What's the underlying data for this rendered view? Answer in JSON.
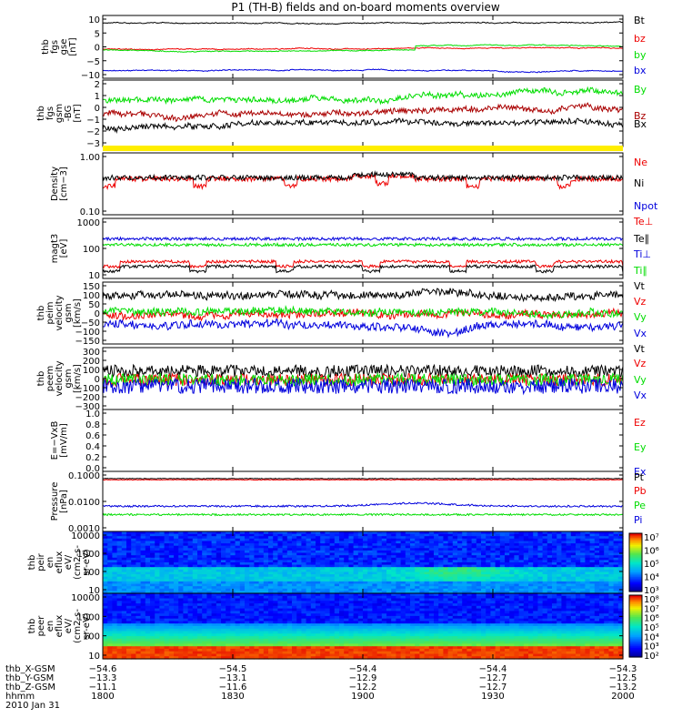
{
  "title": "P1 (TH-B) fields and on-board moments overview",
  "colors": {
    "black": "#000000",
    "red": "#ee0000",
    "green": "#00dd00",
    "blue": "#0000dd",
    "yellow": "#ffee00",
    "darkred": "#aa0000"
  },
  "chart_data": [
    {
      "type": "line",
      "ylabel": [
        "thb",
        "fgs",
        "gse",
        "[nT]"
      ],
      "yticks": [
        "10",
        "5",
        "0",
        "−5",
        "−10"
      ],
      "ylim": [
        -11,
        11
      ],
      "series": [
        {
          "name": "Bt",
          "color": "#000000",
          "base": 8.6,
          "noise": 0.15,
          "wave": 0.25
        },
        {
          "name": "bz",
          "color": "#ee0000",
          "base": -0.3,
          "noise": 0.25,
          "wave": 0.4
        },
        {
          "name": "by",
          "color": "#00dd00",
          "base": -1.0,
          "noise": 0.25,
          "wave": 0.8
        },
        {
          "name": "bx",
          "color": "#0000dd",
          "base": -8.3,
          "noise": 0.15,
          "wave": 0.4
        }
      ]
    },
    {
      "type": "line",
      "ylabel": [
        "thb",
        "fgs",
        "gsm",
        "-BG",
        "[nT]"
      ],
      "yticks": [
        "2",
        "1",
        "0",
        "−1",
        "−2",
        "−3"
      ],
      "ylim": [
        -3.5,
        2.2
      ],
      "series": [
        {
          "name": "By",
          "color": "#00dd00",
          "base": -0.2,
          "noise": 0.3,
          "wave": 0.6
        },
        {
          "name": "Bz",
          "color": "#aa0000",
          "base": -0.9,
          "noise": 0.3,
          "wave": 0.4
        },
        {
          "name": "Bx",
          "color": "#000000",
          "base": -2.1,
          "noise": 0.25,
          "wave": 0.3
        }
      ]
    },
    {
      "type": "line",
      "ylabel": [
        "Density",
        "[cm−3]"
      ],
      "yticks": [
        "1.00",
        "0.10"
      ],
      "yscale": "log",
      "series": [
        {
          "name": "Ne",
          "color": "#ee0000"
        },
        {
          "name": "Ni",
          "color": "#000000"
        },
        {
          "name": "Npot",
          "color": "#0000dd"
        }
      ]
    },
    {
      "type": "line",
      "ylabel": [
        "magt3",
        "[eV]"
      ],
      "yticks": [
        "1000",
        "100",
        "10"
      ],
      "yscale": "log",
      "series": [
        {
          "name": "Te⊥",
          "color": "#ee0000"
        },
        {
          "name": "Te∥",
          "color": "#000000"
        },
        {
          "name": "Ti⊥",
          "color": "#0000dd"
        },
        {
          "name": "Ti∥",
          "color": "#00dd00"
        }
      ]
    },
    {
      "type": "line",
      "ylabel": [
        "thb",
        "peim",
        "velocity",
        "gsm",
        "[km/s]"
      ],
      "yticks": [
        "150",
        "100",
        "50",
        "0",
        "−50",
        "−100",
        "−150"
      ],
      "ylim": [
        -170,
        160
      ],
      "series": [
        {
          "name": "Vt",
          "color": "#000000"
        },
        {
          "name": "Vz",
          "color": "#ee0000"
        },
        {
          "name": "Vy",
          "color": "#00dd00"
        },
        {
          "name": "Vx",
          "color": "#0000dd"
        }
      ]
    },
    {
      "type": "line",
      "ylabel": [
        "thb",
        "peem",
        "velocity",
        "gsm",
        "[km/s]"
      ],
      "yticks": [
        "300",
        "200",
        "100",
        "0",
        "−100",
        "−200",
        "−300"
      ],
      "ylim": [
        -310,
        310
      ],
      "series": [
        {
          "name": "Vt",
          "color": "#000000"
        },
        {
          "name": "Vz",
          "color": "#ee0000"
        },
        {
          "name": "Vy",
          "color": "#00dd00"
        },
        {
          "name": "Vx",
          "color": "#0000dd"
        }
      ]
    },
    {
      "type": "line",
      "ylabel": [
        "E=−VxB",
        "[mV/m]"
      ],
      "yticks": [
        "1.0",
        "0.8",
        "0.6",
        "0.4",
        "0.2",
        "0.0"
      ],
      "ylim": [
        0,
        1
      ],
      "series": [
        {
          "name": "Ez",
          "color": "#ee0000"
        },
        {
          "name": "Ey",
          "color": "#00dd00"
        },
        {
          "name": "Ex",
          "color": "#0000dd"
        }
      ]
    },
    {
      "type": "line",
      "ylabel": [
        "Pressure",
        "[nPa]"
      ],
      "yticks": [
        "0.1000",
        "0.0100",
        "0.0010"
      ],
      "yscale": "log",
      "series": [
        {
          "name": "Pt",
          "color": "#000000"
        },
        {
          "name": "Pb",
          "color": "#ee0000"
        },
        {
          "name": "Pe",
          "color": "#00dd00"
        },
        {
          "name": "Pi",
          "color": "#0000dd"
        }
      ]
    },
    {
      "type": "heatmap",
      "ylabel": [
        "thb",
        "peir",
        "en",
        "eflux",
        "eV/",
        "(cm2-s-",
        "sr-eV)"
      ],
      "yticks": [
        "10000",
        "1000",
        "100",
        "10"
      ],
      "colorbar": [
        "10⁷",
        "10⁶",
        "10⁵",
        "10⁴",
        "10³"
      ]
    },
    {
      "type": "heatmap",
      "ylabel": [
        "thb",
        "peer",
        "en",
        "eflux",
        "eV/",
        "(cm2-s-",
        "sr-eV)"
      ],
      "yticks": [
        "10000",
        "1000",
        "100",
        "10"
      ],
      "colorbar": [
        "10⁸",
        "10⁷",
        "10⁶",
        "10⁵",
        "10⁴",
        "10³",
        "10²"
      ]
    }
  ],
  "xaxis": {
    "rows": [
      {
        "label": "thb_X-GSM",
        "values": [
          "−54.6",
          "−54.5",
          "−54.4",
          "−54.4",
          "−54.3"
        ]
      },
      {
        "label": "thb_Y-GSM",
        "values": [
          "−13.3",
          "−13.1",
          "−12.9",
          "−12.7",
          "−12.5"
        ]
      },
      {
        "label": "thb_Z-GSM",
        "values": [
          "−11.1",
          "−11.6",
          "−12.2",
          "−12.7",
          "−13.2"
        ]
      },
      {
        "label": "hhmm",
        "values": [
          "1800",
          "1830",
          "1900",
          "1930",
          "2000"
        ]
      }
    ],
    "date": "2010 Jan 31"
  }
}
